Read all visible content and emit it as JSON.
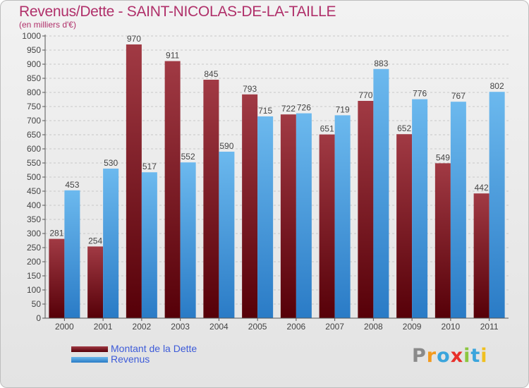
{
  "title": "Revenus/Dette - SAINT-NICOLAS-DE-LA-TAILLE",
  "subtitle": "(en milliers d'€)",
  "brand": {
    "letters": [
      {
        "ch": "P",
        "color": "#8a8a8a"
      },
      {
        "ch": "r",
        "color": "#f39a1e"
      },
      {
        "ch": "o",
        "color": "#3ba5dc"
      },
      {
        "ch": "x",
        "color": "#e8302a"
      },
      {
        "ch": "i",
        "color": "#8cc640"
      },
      {
        "ch": "t",
        "color": "#3ba5dc"
      },
      {
        "ch": "i",
        "color": "#f0c020"
      }
    ]
  },
  "colors": {
    "dette_top": "#a13a44",
    "dette_bottom": "#560008",
    "revenus_top": "#6cb9ee",
    "revenus_bottom": "#2a7bc6",
    "grid": "#c8c8c8",
    "axis": "#555555",
    "label": "#444444"
  },
  "chart_data": {
    "type": "bar",
    "categories": [
      "2000",
      "2001",
      "2002",
      "2003",
      "2004",
      "2005",
      "2006",
      "2007",
      "2008",
      "2009",
      "2010",
      "2011"
    ],
    "series": [
      {
        "name": "Montant de la Dette",
        "values": [
          281,
          254,
          970,
          911,
          845,
          793,
          722,
          651,
          770,
          652,
          549,
          442
        ]
      },
      {
        "name": "Revenus",
        "values": [
          453,
          530,
          517,
          552,
          590,
          715,
          726,
          719,
          883,
          776,
          767,
          802
        ]
      }
    ],
    "ylim": [
      0,
      1000
    ],
    "ytick_step": 50,
    "grid": true,
    "legend_position": "bottom-left",
    "data_labels": true
  }
}
